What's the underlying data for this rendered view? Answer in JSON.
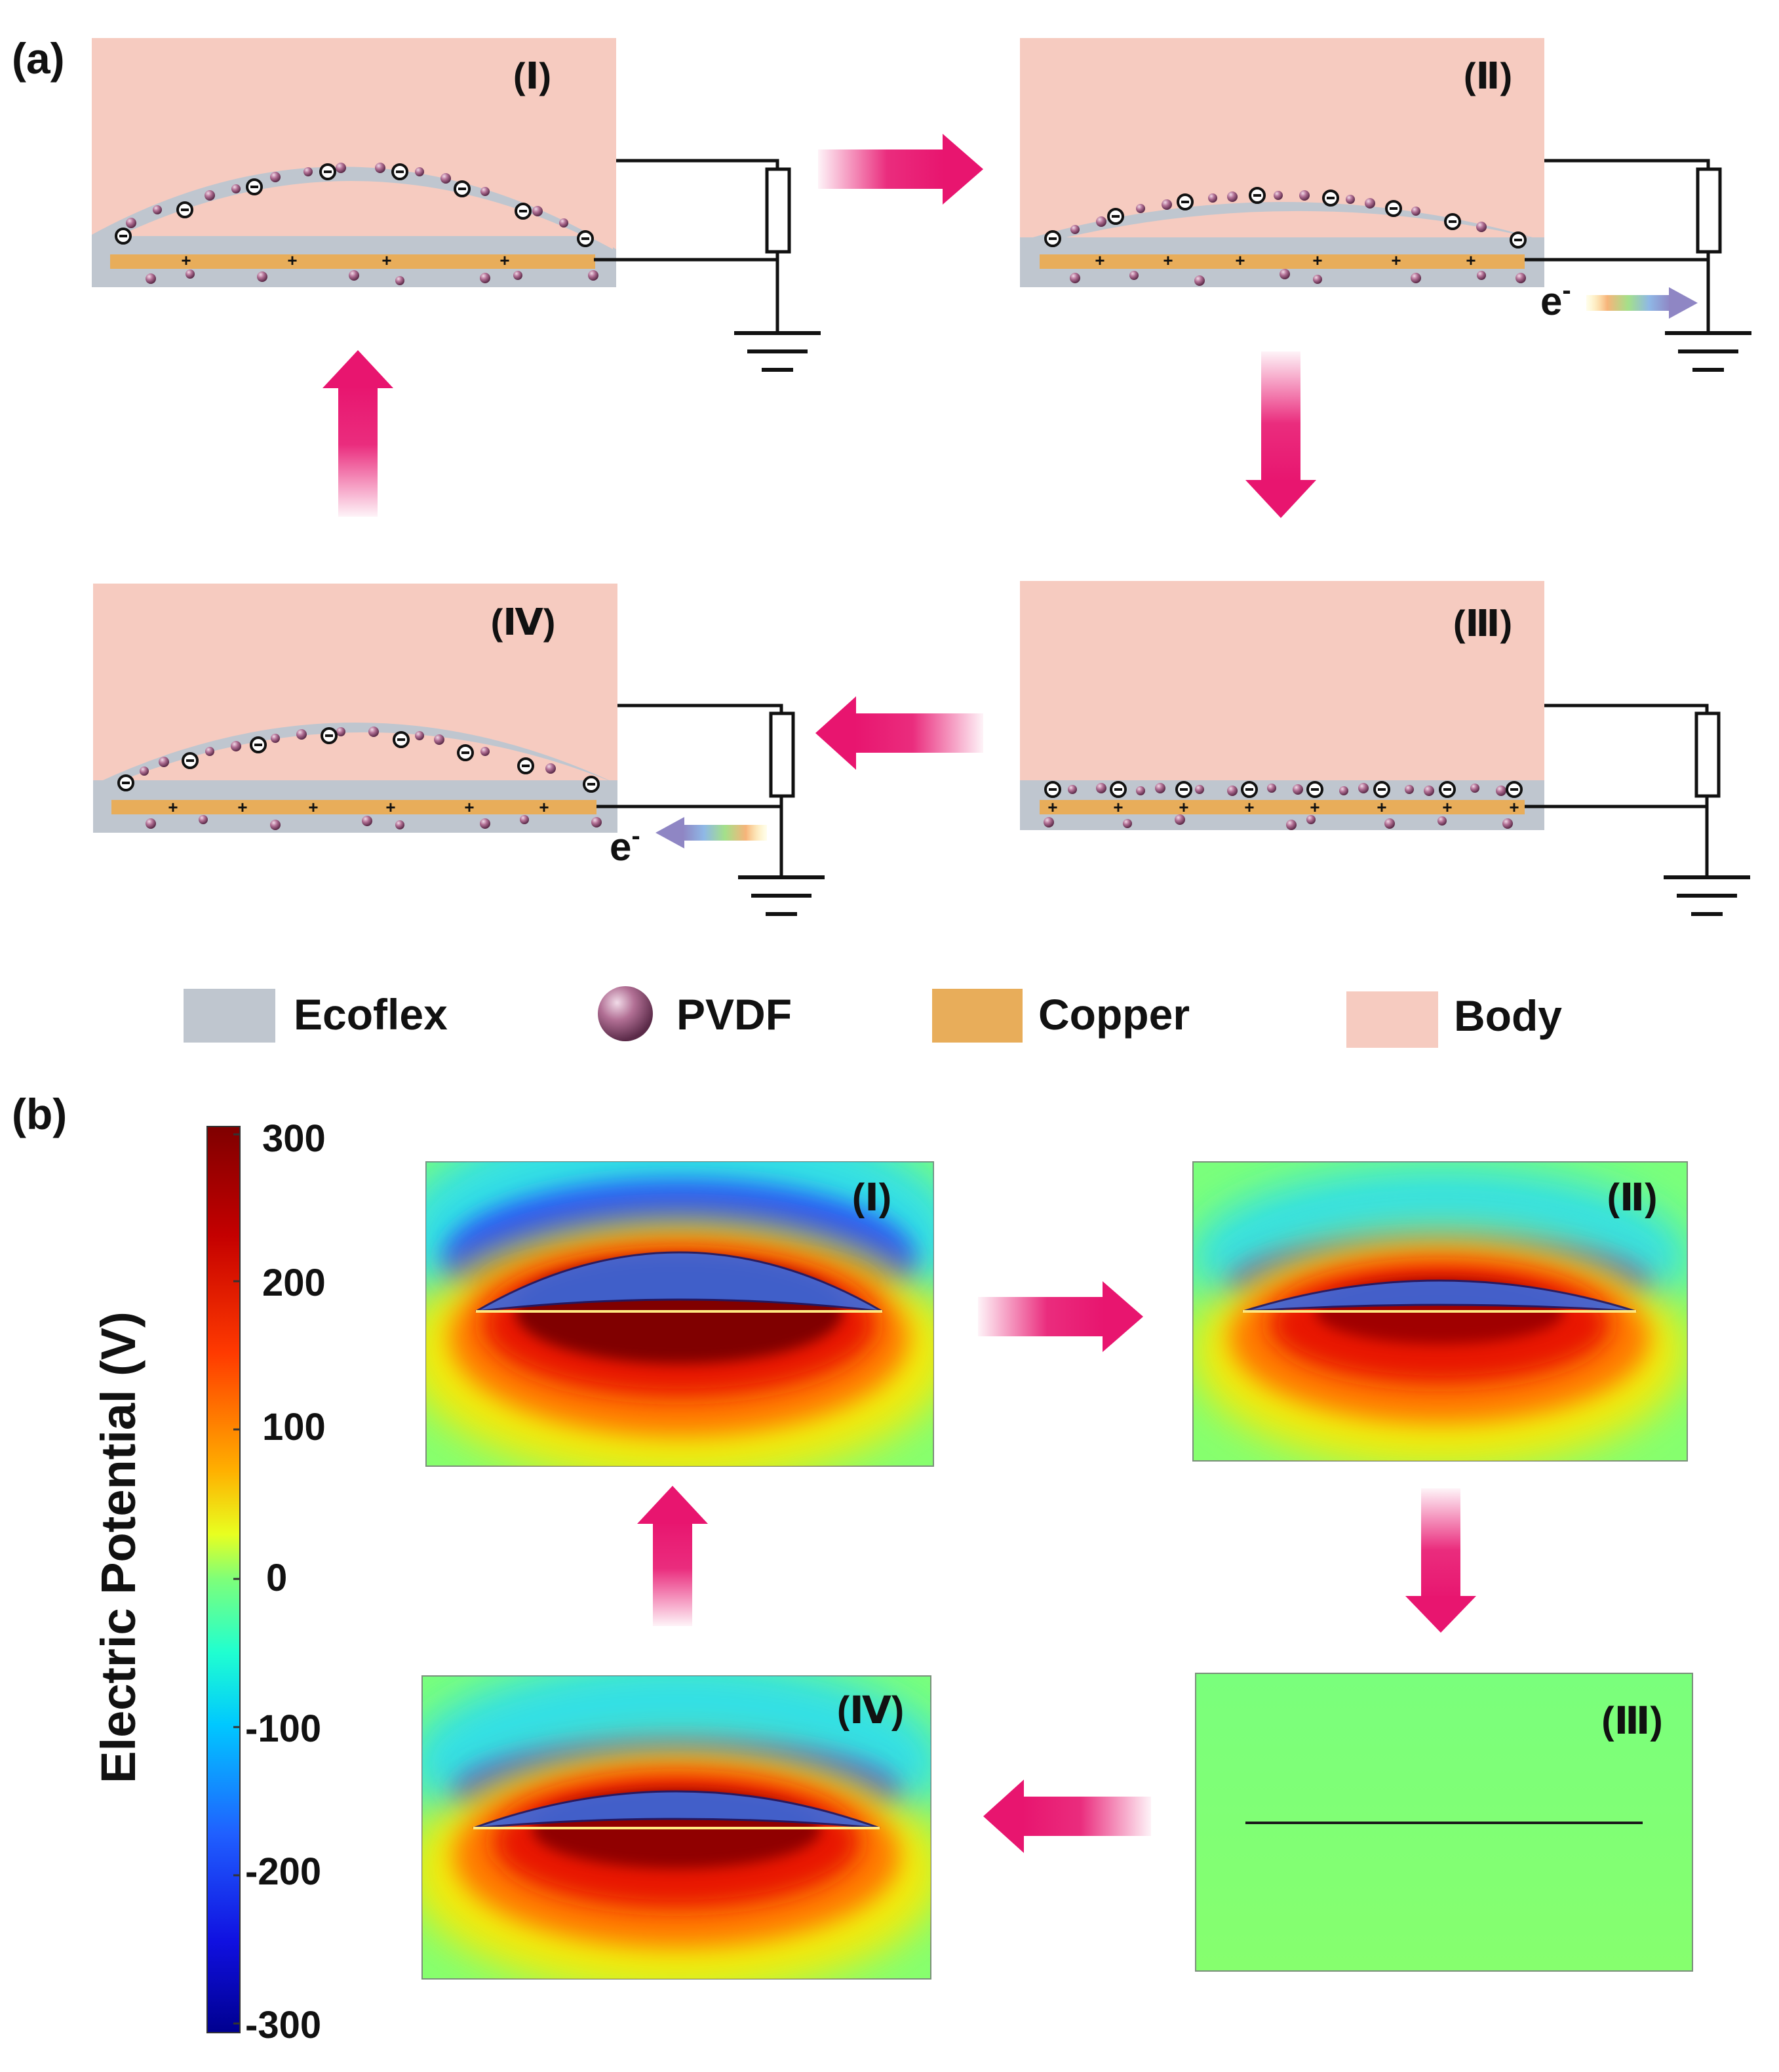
{
  "panel_a": {
    "label": "(a)",
    "stages": [
      {
        "id": "I",
        "label": "(Ⅰ)",
        "state": "separated"
      },
      {
        "id": "II",
        "label": "(Ⅱ)",
        "state": "pressing",
        "electron_label": "e",
        "electron_superscript": "-",
        "electron_flow": "right"
      },
      {
        "id": "III",
        "label": "(Ⅲ)",
        "state": "contact"
      },
      {
        "id": "IV",
        "label": "(Ⅳ)",
        "state": "releasing",
        "electron_label": "e",
        "electron_superscript": "-",
        "electron_flow": "left"
      }
    ]
  },
  "legend": [
    {
      "name": "ecoflex",
      "label": "Ecoflex",
      "color": "#bfc6cf",
      "marker": "square"
    },
    {
      "name": "pvdf",
      "label": "PVDF",
      "color": "#b77a9a",
      "marker": "sphere"
    },
    {
      "name": "copper",
      "label": "Copper",
      "color": "#e8ad5a",
      "marker": "square"
    },
    {
      "name": "body",
      "label": "Body",
      "color": "#f6cbc0",
      "marker": "square"
    }
  ],
  "panel_b": {
    "label": "(b)",
    "colorbar": {
      "title": "Electric Potential (V)",
      "ticks": [
        "300",
        "200",
        "100",
        "0",
        "-100",
        "-200",
        "-300"
      ],
      "range": [
        -300,
        300
      ],
      "colormap": [
        "#7f0000",
        "#ff2a00",
        "#ffd300",
        "#7dff7a",
        "#00d8ff",
        "#0030ff",
        "#00008f"
      ]
    },
    "maps": [
      {
        "id": "I",
        "label": "(Ⅰ)",
        "peak_potential": 300
      },
      {
        "id": "II",
        "label": "(Ⅱ)",
        "peak_potential": 240
      },
      {
        "id": "III",
        "label": "(Ⅲ)",
        "peak_potential": 0
      },
      {
        "id": "IV",
        "label": "(Ⅳ)",
        "peak_potential": 270
      }
    ]
  },
  "colors": {
    "arrow": "#e8156f",
    "body": "#f6cbc0",
    "ecoflex": "#bfc6cf",
    "copper": "#e8ad5a",
    "background_potential": "#7dff7a"
  }
}
